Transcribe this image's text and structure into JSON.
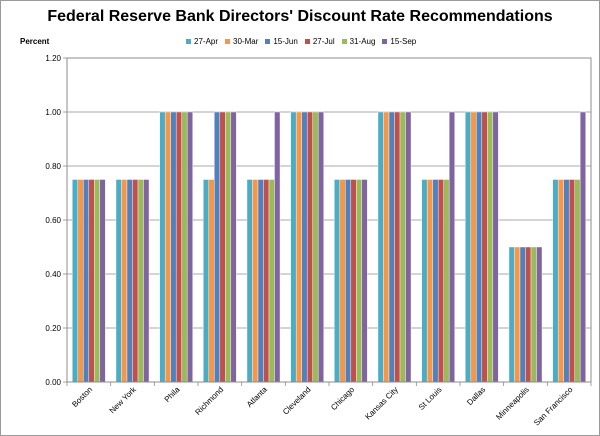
{
  "chart_data": {
    "type": "bar",
    "title": "Federal Reserve Bank Directors' Discount Rate Recommendations",
    "ylabel": "Percent",
    "xlabel": "",
    "ylim": [
      0,
      1.2
    ],
    "yticks": [
      "0.00",
      "0.20",
      "0.40",
      "0.60",
      "0.80",
      "1.00",
      "1.20"
    ],
    "ytick_values": [
      0,
      0.2,
      0.4,
      0.6,
      0.8,
      1.0,
      1.2
    ],
    "grid": true,
    "legend_position": "top",
    "categories": [
      "Boston",
      "New York",
      "Phila",
      "Richmond",
      "Atlanta",
      "Cleveland",
      "Chicago",
      "Kansas City",
      "St Louis",
      "Dallas",
      "Minneapolis",
      "San Francisco"
    ],
    "series": [
      {
        "name": "27-Apr",
        "color": "#4bacc6",
        "values": [
          0.75,
          0.75,
          1.0,
          0.75,
          0.75,
          1.0,
          0.75,
          1.0,
          0.75,
          1.0,
          0.5,
          0.75
        ]
      },
      {
        "name": "30-Mar",
        "color": "#f79646",
        "values": [
          0.75,
          0.75,
          1.0,
          0.75,
          0.75,
          1.0,
          0.75,
          1.0,
          0.75,
          1.0,
          0.5,
          0.75
        ]
      },
      {
        "name": "15-Jun",
        "color": "#4f81bd",
        "values": [
          0.75,
          0.75,
          1.0,
          1.0,
          0.75,
          1.0,
          0.75,
          1.0,
          0.75,
          1.0,
          0.5,
          0.75
        ]
      },
      {
        "name": "27-Jul",
        "color": "#c0504d",
        "values": [
          0.75,
          0.75,
          1.0,
          1.0,
          0.75,
          1.0,
          0.75,
          1.0,
          0.75,
          1.0,
          0.5,
          0.75
        ]
      },
      {
        "name": "31-Aug",
        "color": "#9bbb59",
        "values": [
          0.75,
          0.75,
          1.0,
          1.0,
          0.75,
          1.0,
          0.75,
          1.0,
          0.75,
          1.0,
          0.5,
          0.75
        ]
      },
      {
        "name": "15-Sep",
        "color": "#8064a2",
        "values": [
          0.75,
          0.75,
          1.0,
          1.0,
          1.0,
          1.0,
          0.75,
          1.0,
          1.0,
          1.0,
          0.5,
          1.0
        ]
      }
    ]
  }
}
